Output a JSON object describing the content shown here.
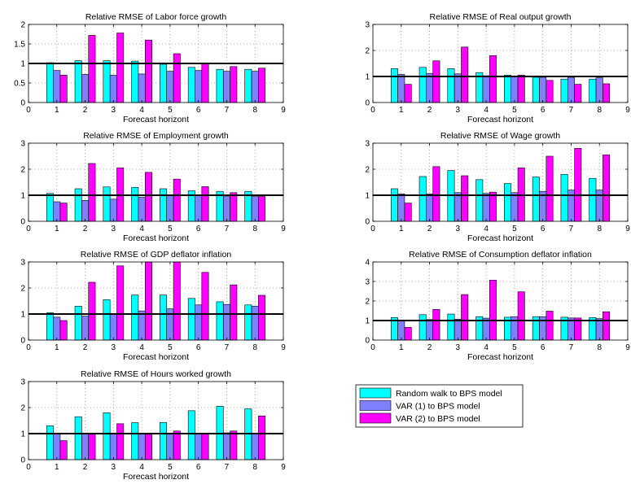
{
  "legend": {
    "items": [
      {
        "label": "Random walk to BPS model",
        "color": "#00ffff"
      },
      {
        "label": "VAR (1) to BPS model",
        "color": "#8080ff"
      },
      {
        "label": "VAR (2) to BPS model",
        "color": "#ff00ff"
      }
    ]
  },
  "chart_data": [
    {
      "type": "bar",
      "title": "Relative RMSE of Labor force growth",
      "xlabel": "Forecast horizont",
      "x_ticks": [
        "0",
        "1",
        "2",
        "3",
        "4",
        "5",
        "6",
        "7",
        "8",
        "9"
      ],
      "categories": [
        "1",
        "2",
        "3",
        "4",
        "5",
        "6",
        "7",
        "8"
      ],
      "xlim": [
        0,
        9
      ],
      "ylim": [
        0,
        2
      ],
      "y_ticks": [
        "0",
        "0.5",
        "1",
        "1.5",
        "2"
      ],
      "reference_line": 1,
      "grid": true,
      "series": [
        {
          "name": "Random walk to BPS model",
          "color": "#00ffff",
          "values": [
            1.02,
            1.07,
            1.07,
            1.06,
            0.98,
            0.9,
            0.85,
            0.85
          ]
        },
        {
          "name": "VAR (1) to BPS model",
          "color": "#8080ff",
          "values": [
            0.82,
            0.72,
            0.7,
            0.73,
            0.8,
            0.82,
            0.8,
            0.8
          ]
        },
        {
          "name": "VAR (2) to BPS model",
          "color": "#ff00ff",
          "values": [
            0.7,
            1.72,
            1.78,
            1.6,
            1.25,
            1.0,
            0.92,
            0.88
          ]
        }
      ]
    },
    {
      "type": "bar",
      "title": "Relative RMSE of  Real output growth",
      "xlabel": "Forecast horizont",
      "x_ticks": [
        "0",
        "1",
        "2",
        "3",
        "4",
        "5",
        "6",
        "7",
        "8",
        "9"
      ],
      "categories": [
        "1",
        "2",
        "3",
        "4",
        "5",
        "6",
        "7",
        "8"
      ],
      "xlim": [
        0,
        9
      ],
      "ylim": [
        0,
        3
      ],
      "y_ticks": [
        "0",
        "1",
        "2",
        "3"
      ],
      "reference_line": 1,
      "grid": true,
      "series": [
        {
          "name": "Random walk to BPS model",
          "color": "#00ffff",
          "values": [
            1.3,
            1.35,
            1.3,
            1.15,
            1.05,
            0.97,
            0.9,
            0.9
          ]
        },
        {
          "name": "VAR (1) to BPS model",
          "color": "#8080ff",
          "values": [
            1.08,
            1.12,
            1.1,
            1.03,
            1.0,
            0.97,
            0.97,
            0.95
          ]
        },
        {
          "name": "VAR (2) to BPS model",
          "color": "#ff00ff",
          "values": [
            0.7,
            1.6,
            2.13,
            1.8,
            1.05,
            0.85,
            0.7,
            0.72
          ]
        }
      ]
    },
    {
      "type": "bar",
      "title": "Relative RMSE of Employment growth",
      "xlabel": "Forecast horizont",
      "x_ticks": [
        "0",
        "1",
        "2",
        "3",
        "4",
        "5",
        "6",
        "7",
        "8",
        "9"
      ],
      "categories": [
        "1",
        "2",
        "3",
        "4",
        "5",
        "6",
        "7",
        "8"
      ],
      "xlim": [
        0,
        9
      ],
      "ylim": [
        0,
        3
      ],
      "y_ticks": [
        "0",
        "1",
        "2",
        "3"
      ],
      "reference_line": 1,
      "grid": true,
      "series": [
        {
          "name": "Random walk to BPS model",
          "color": "#00ffff",
          "values": [
            1.07,
            1.25,
            1.32,
            1.3,
            1.25,
            1.17,
            1.15,
            1.15
          ]
        },
        {
          "name": "VAR (1) to BPS model",
          "color": "#8080ff",
          "values": [
            0.75,
            0.8,
            0.85,
            0.92,
            1.0,
            1.0,
            0.97,
            0.95
          ]
        },
        {
          "name": "VAR (2) to BPS model",
          "color": "#ff00ff",
          "values": [
            0.7,
            2.22,
            2.05,
            1.88,
            1.62,
            1.33,
            1.1,
            0.95
          ]
        }
      ]
    },
    {
      "type": "bar",
      "title": "Relative RMSE of Wage growth",
      "xlabel": "Forecast horizont",
      "x_ticks": [
        "0",
        "1",
        "2",
        "3",
        "4",
        "5",
        "6",
        "7",
        "8",
        "9"
      ],
      "categories": [
        "1",
        "2",
        "3",
        "4",
        "5",
        "6",
        "7",
        "8"
      ],
      "xlim": [
        0,
        9
      ],
      "ylim": [
        0,
        3
      ],
      "y_ticks": [
        "0",
        "1",
        "2",
        "3"
      ],
      "reference_line": 1,
      "grid": true,
      "series": [
        {
          "name": "Random walk to BPS model",
          "color": "#00ffff",
          "values": [
            1.25,
            1.72,
            1.95,
            1.6,
            1.45,
            1.7,
            1.8,
            1.65
          ]
        },
        {
          "name": "VAR (1) to BPS model",
          "color": "#8080ff",
          "values": [
            1.05,
            1.05,
            1.1,
            1.07,
            1.1,
            1.15,
            1.2,
            1.2
          ]
        },
        {
          "name": "VAR (2) to BPS model",
          "color": "#ff00ff",
          "values": [
            0.7,
            2.1,
            1.75,
            1.12,
            2.05,
            2.5,
            2.8,
            2.55
          ]
        }
      ]
    },
    {
      "type": "bar",
      "title": "Relative RMSE of GDP deflator inflation",
      "xlabel": "Forecast horizont",
      "x_ticks": [
        "0",
        "1",
        "2",
        "3",
        "4",
        "5",
        "6",
        "7",
        "8",
        "9"
      ],
      "categories": [
        "1",
        "2",
        "3",
        "4",
        "5",
        "6",
        "7",
        "8"
      ],
      "xlim": [
        0,
        9
      ],
      "ylim": [
        0,
        3
      ],
      "y_ticks": [
        "0",
        "1",
        "2",
        "3"
      ],
      "reference_line": 1,
      "grid": true,
      "series": [
        {
          "name": "Random walk to BPS model",
          "color": "#00ffff",
          "values": [
            1.05,
            1.3,
            1.55,
            1.73,
            1.73,
            1.6,
            1.47,
            1.35
          ]
        },
        {
          "name": "VAR (1) to BPS model",
          "color": "#8080ff",
          "values": [
            0.88,
            0.92,
            1.0,
            1.12,
            1.2,
            1.35,
            1.37,
            1.3
          ]
        },
        {
          "name": "VAR (2) to BPS model",
          "color": "#ff00ff",
          "values": [
            0.75,
            2.22,
            2.85,
            3.0,
            3.0,
            2.6,
            2.12,
            1.72
          ]
        }
      ]
    },
    {
      "type": "bar",
      "title": "Relative RMSE of Consumption deflator inflation",
      "xlabel": "Forecast horizont",
      "x_ticks": [
        "0",
        "1",
        "2",
        "3",
        "4",
        "5",
        "6",
        "7",
        "8",
        "9"
      ],
      "categories": [
        "1",
        "2",
        "3",
        "4",
        "5",
        "6",
        "7",
        "8"
      ],
      "xlim": [
        0,
        9
      ],
      "ylim": [
        0,
        4
      ],
      "y_ticks": [
        "0",
        "1",
        "2",
        "3",
        "4"
      ],
      "reference_line": 1,
      "grid": true,
      "series": [
        {
          "name": "Random walk to BPS model",
          "color": "#00ffff",
          "values": [
            1.15,
            1.3,
            1.33,
            1.2,
            1.17,
            1.2,
            1.17,
            1.15
          ]
        },
        {
          "name": "VAR (1) to BPS model",
          "color": "#8080ff",
          "values": [
            1.0,
            1.05,
            1.07,
            1.12,
            1.2,
            1.2,
            1.13,
            1.1
          ]
        },
        {
          "name": "VAR (2) to BPS model",
          "color": "#ff00ff",
          "values": [
            0.65,
            1.57,
            2.33,
            3.07,
            2.47,
            1.48,
            1.13,
            1.45
          ]
        }
      ]
    },
    {
      "type": "bar",
      "title": "Relative RMSE of Hours worked growth",
      "xlabel": "Forecast horizont",
      "x_ticks": [
        "0",
        "1",
        "2",
        "3",
        "4",
        "5",
        "6",
        "7",
        "8",
        "9"
      ],
      "categories": [
        "1",
        "2",
        "3",
        "4",
        "5",
        "6",
        "7",
        "8"
      ],
      "xlim": [
        0,
        9
      ],
      "ylim": [
        0,
        3
      ],
      "y_ticks": [
        "0",
        "1",
        "2",
        "3"
      ],
      "reference_line": 1,
      "grid": true,
      "series": [
        {
          "name": "Random walk to BPS model",
          "color": "#00ffff",
          "values": [
            1.3,
            1.65,
            1.8,
            1.42,
            1.43,
            1.88,
            2.05,
            1.95
          ]
        },
        {
          "name": "VAR (1) to BPS model",
          "color": "#8080ff",
          "values": [
            1.0,
            1.0,
            1.0,
            1.0,
            1.02,
            1.02,
            1.03,
            1.0
          ]
        },
        {
          "name": "VAR (2) to BPS model",
          "color": "#ff00ff",
          "values": [
            0.73,
            1.0,
            1.38,
            0.97,
            1.1,
            1.02,
            1.1,
            1.68
          ]
        }
      ]
    }
  ]
}
